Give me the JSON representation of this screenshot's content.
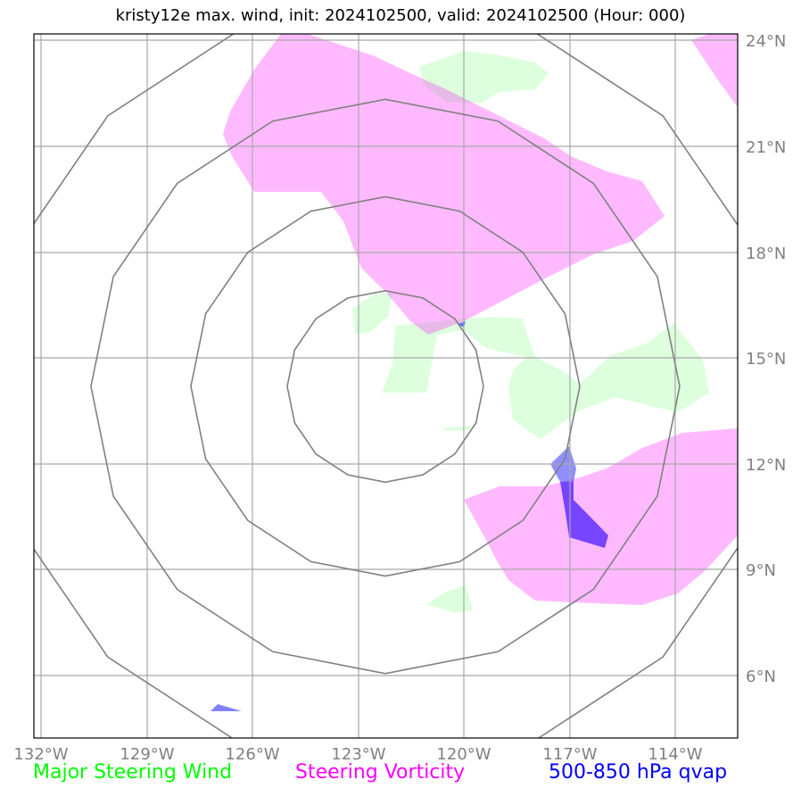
{
  "title": "kristy12e max. wind, init: 2024102500, valid: 2024102500 (Hour: 000)",
  "axes": {
    "lon_labels": [
      "132°W",
      "129°W",
      "126°W",
      "123°W",
      "120°W",
      "117°W",
      "114°W"
    ],
    "lat_labels": [
      "24°N",
      "21°N",
      "18°N",
      "15°N",
      "12°N",
      "9°N",
      "6°N"
    ]
  },
  "legend": [
    {
      "label": "Major Steering Wind",
      "color": "#00ff00"
    },
    {
      "label": "Steering Vorticity",
      "color": "#ff00ff"
    },
    {
      "label": "500-850 hPa qvap",
      "color": "#0000ff"
    }
  ],
  "colors": {
    "steering_wind_fill": "#ddffdd",
    "vorticity_fill": "#ffbbff",
    "qvap_fill": "#7744ff",
    "range_rings": "#808080",
    "gridlines": "#a8a8a8"
  }
}
